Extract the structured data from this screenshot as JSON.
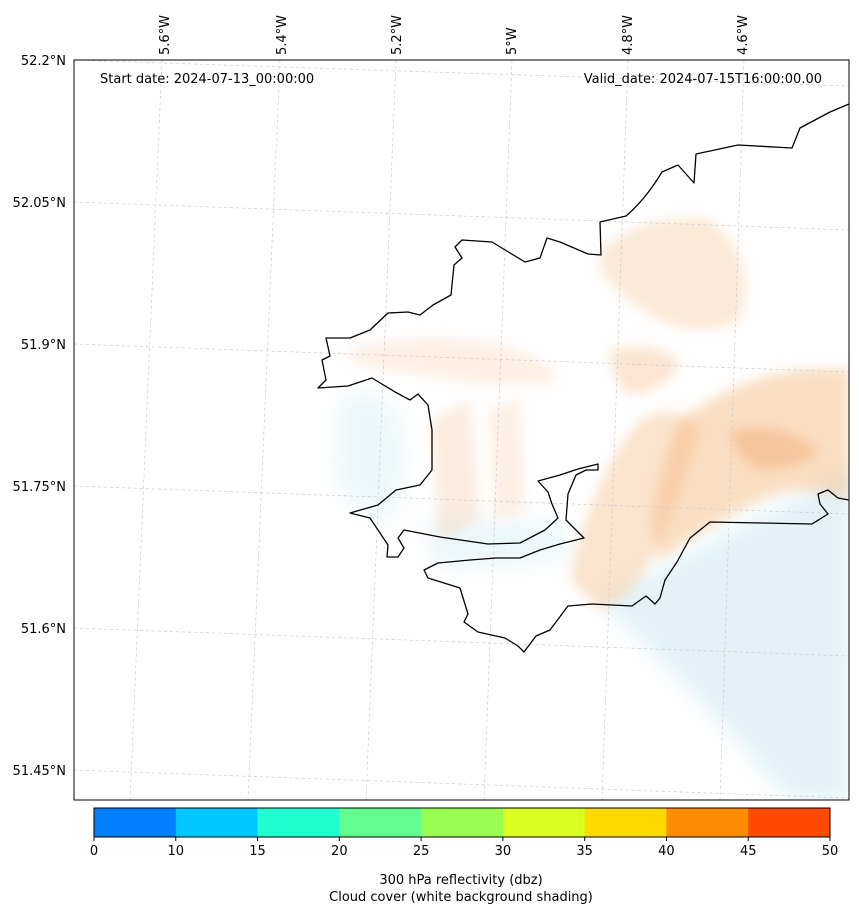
{
  "header": {
    "start_label": "Start date: 2024-07-13_00:00:00",
    "valid_label": "Valid_date: 2024-07-15T16:00:00.00"
  },
  "axes": {
    "lon_labels": [
      "5.6°W",
      "5.4°W",
      "5.2°W",
      "5°W",
      "4.8°W",
      "4.6°W"
    ],
    "lat_labels": [
      "52.2°N",
      "52.05°N",
      "51.9°N",
      "51.75°N",
      "51.6°N",
      "51.45°N"
    ]
  },
  "colorbar": {
    "ticks": [
      "0",
      "10",
      "15",
      "20",
      "25",
      "30",
      "35",
      "40",
      "45",
      "50"
    ],
    "colors": [
      "#0080ff",
      "#00c8ff",
      "#20ffd0",
      "#60ff90",
      "#98ff50",
      "#d8ff20",
      "#ffd800",
      "#ff8c00",
      "#ff4800"
    ],
    "label_line1": "300 hPa reflectivity (dbz)",
    "label_line2": "Cloud cover (white background shading)"
  },
  "layers": {
    "coastline_color": "#000000",
    "cloud_warm_color": "#f5b57a",
    "cloud_cool_color": "#bfe3ee"
  }
}
